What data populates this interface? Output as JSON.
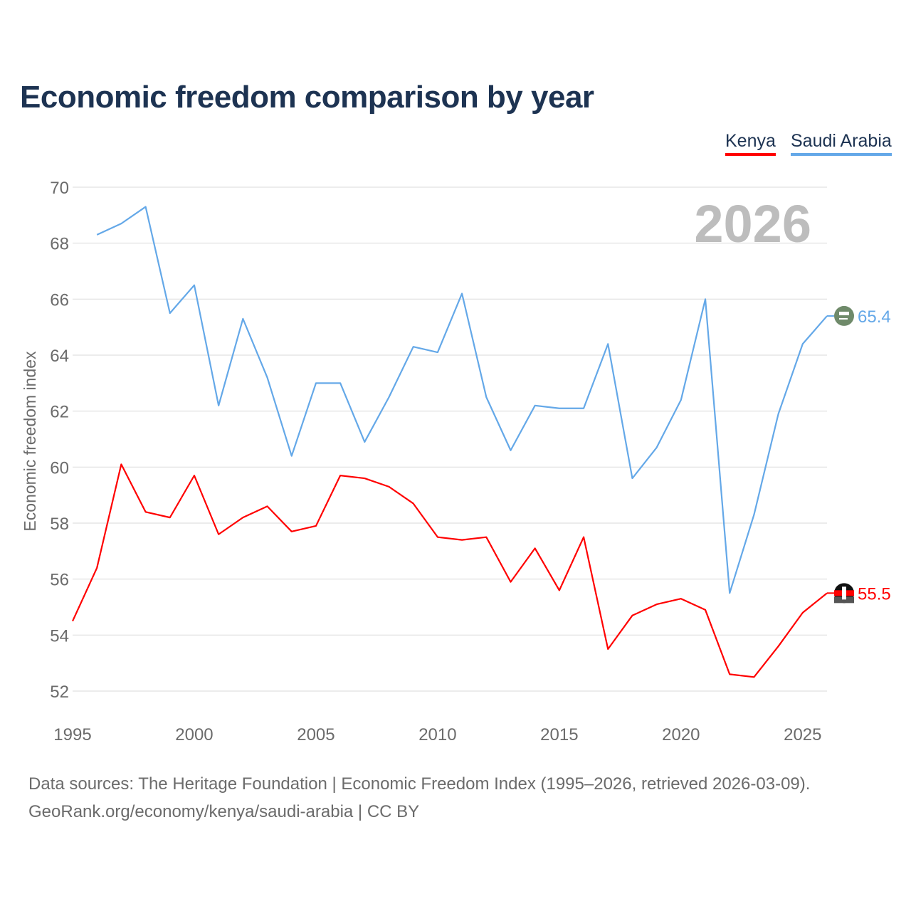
{
  "chart_data": {
    "type": "line",
    "title": "Economic freedom comparison by year",
    "xlabel": "",
    "ylabel": "Economic freedom index",
    "ylim": [
      52,
      70
    ],
    "xlim": [
      1995,
      2026
    ],
    "yticks": [
      52,
      54,
      56,
      58,
      60,
      62,
      64,
      66,
      68,
      70
    ],
    "xticks": [
      1995,
      2000,
      2005,
      2010,
      2015,
      2020,
      2025
    ],
    "grid": true,
    "legend_position": "top-right",
    "year_label": "2026",
    "series": [
      {
        "name": "Kenya",
        "color": "#ff0000",
        "end_label": "55.5",
        "x": [
          1995,
          1996,
          1997,
          1998,
          1999,
          2000,
          2001,
          2002,
          2003,
          2004,
          2005,
          2006,
          2007,
          2008,
          2009,
          2010,
          2011,
          2012,
          2013,
          2014,
          2015,
          2016,
          2017,
          2018,
          2019,
          2020,
          2021,
          2022,
          2023,
          2024,
          2025,
          2026
        ],
        "values": [
          54.5,
          56.4,
          60.1,
          58.4,
          58.2,
          59.7,
          57.6,
          58.2,
          58.6,
          57.7,
          57.9,
          59.7,
          59.6,
          59.3,
          58.7,
          57.5,
          57.4,
          57.5,
          55.9,
          57.1,
          55.6,
          57.5,
          53.5,
          54.7,
          55.1,
          55.3,
          54.9,
          52.6,
          52.5,
          53.6,
          54.8,
          55.5
        ]
      },
      {
        "name": "Saudi Arabia",
        "color": "#64a8e8",
        "end_label": "65.4",
        "x": [
          1996,
          1997,
          1998,
          1999,
          2000,
          2001,
          2002,
          2003,
          2004,
          2005,
          2006,
          2007,
          2008,
          2009,
          2010,
          2011,
          2012,
          2013,
          2014,
          2015,
          2016,
          2017,
          2018,
          2019,
          2020,
          2021,
          2022,
          2023,
          2024,
          2025,
          2026
        ],
        "values": [
          68.3,
          68.7,
          69.3,
          65.5,
          66.5,
          62.2,
          65.3,
          63.2,
          60.4,
          63.0,
          63.0,
          60.9,
          62.5,
          64.3,
          64.1,
          66.2,
          62.5,
          60.6,
          62.2,
          62.1,
          62.1,
          64.4,
          59.6,
          60.7,
          62.4,
          66.0,
          55.5,
          58.3,
          61.9,
          64.4,
          65.4
        ]
      }
    ]
  },
  "footer": {
    "line1": "Data sources: The Heritage Foundation | Economic Freedom Index (1995–2026, retrieved 2026-03-09).",
    "line2": "GeoRank.org/economy/kenya/saudi-arabia | CC BY"
  }
}
